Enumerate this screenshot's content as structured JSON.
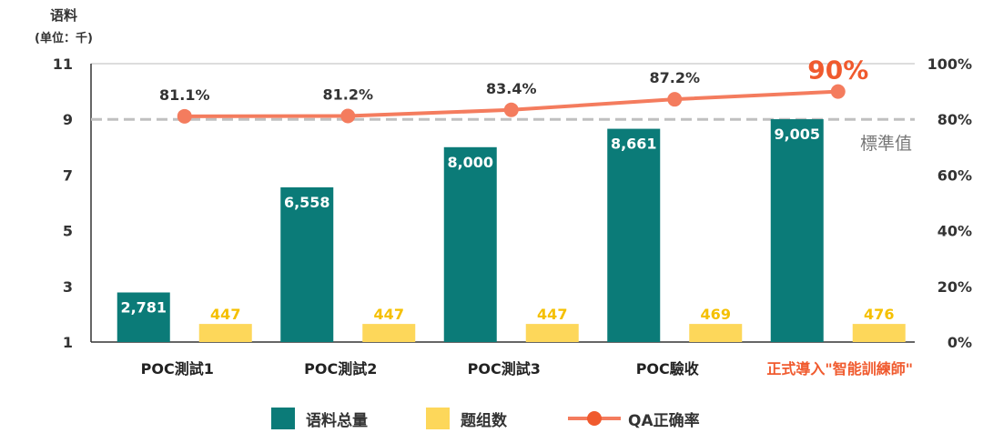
{
  "chart_data": {
    "type": "bar",
    "title": "",
    "ylabel": "语料",
    "ylabel_unit": "(单位：千)",
    "ylim": [
      1,
      11
    ],
    "yticks": [
      "1",
      "3",
      "5",
      "7",
      "9",
      "11"
    ],
    "y2lim": [
      0,
      100
    ],
    "y2ticks": [
      "0%",
      "20%",
      "40%",
      "60%",
      "80%",
      "100%"
    ],
    "categories": [
      "POC測試1",
      "POC測試2",
      "POC測試3",
      "POC驗收",
      "正式導入\"智能訓練師\""
    ],
    "highlight_category_index": 4,
    "series": [
      {
        "name": "语料总量",
        "type": "bar",
        "axis": "left",
        "color": "#0b7b78",
        "values": [
          2781,
          6558,
          8000,
          8661,
          9005
        ],
        "labels": [
          "2,781",
          "6,558",
          "8,000",
          "8,661",
          "9,005"
        ]
      },
      {
        "name": "题组数",
        "type": "bar",
        "axis": "left",
        "color": "#fdd75a",
        "values": [
          447,
          447,
          447,
          469,
          476
        ],
        "labels": [
          "447",
          "447",
          "447",
          "469",
          "476"
        ]
      },
      {
        "name": "QA正确率",
        "type": "line",
        "axis": "right",
        "color": "#f47c5e",
        "values": [
          81.1,
          81.2,
          83.4,
          87.2,
          90
        ],
        "labels": [
          "81.1%",
          "81.2%",
          "83.4%",
          "87.2%",
          "90%"
        ]
      }
    ],
    "reference_line": {
      "value": 9,
      "label": "標準值",
      "color": "#c0c0c0"
    },
    "legend_position": "bottom",
    "accent_color": "#f05a2e"
  }
}
